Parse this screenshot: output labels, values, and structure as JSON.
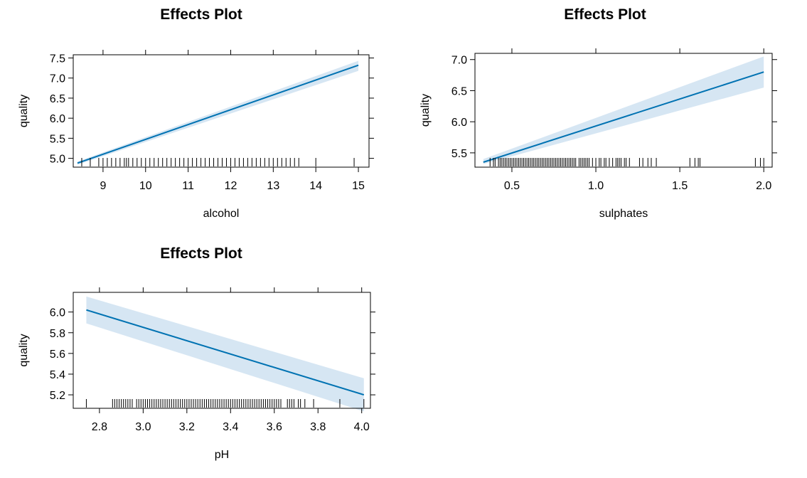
{
  "chart_data": [
    {
      "type": "line",
      "title": "Effects Plot",
      "xlabel": "alcohol",
      "ylabel": "quality",
      "xlim": [
        8.3,
        15.25
      ],
      "ylim": [
        4.78,
        7.58
      ],
      "xticks": [
        9,
        10,
        11,
        12,
        13,
        14,
        15
      ],
      "xtick_labels": [
        "9",
        "10",
        "11",
        "12",
        "13",
        "14",
        "15"
      ],
      "yticks": [
        5.0,
        5.5,
        6.0,
        6.5,
        7.0,
        7.5
      ],
      "ytick_labels": [
        "5.0",
        "5.5",
        "6.0",
        "6.5",
        "7.0",
        "7.5"
      ],
      "series": [
        {
          "x": [
            8.4,
            15.0
          ],
          "y": [
            4.88,
            7.32
          ],
          "lower": [
            4.84,
            7.18
          ],
          "upper": [
            4.92,
            7.43
          ]
        }
      ],
      "rug": [
        8.5,
        8.7,
        8.9,
        9.0,
        9.1,
        9.2,
        9.3,
        9.4,
        9.5,
        9.55,
        9.6,
        9.7,
        9.8,
        9.9,
        10.0,
        10.1,
        10.2,
        10.3,
        10.4,
        10.5,
        10.6,
        10.7,
        10.8,
        10.9,
        11.0,
        11.1,
        11.2,
        11.3,
        11.4,
        11.5,
        11.6,
        11.7,
        11.8,
        11.9,
        12.0,
        12.1,
        12.2,
        12.3,
        12.4,
        12.5,
        12.6,
        12.7,
        12.8,
        12.9,
        13.0,
        13.1,
        13.2,
        13.3,
        13.4,
        13.5,
        13.6,
        14.0,
        14.9
      ],
      "grid": false,
      "colors": {
        "line": "#0072b2",
        "band": "#d6e6f3"
      }
    },
    {
      "type": "line",
      "title": "Effects Plot",
      "xlabel": "sulphates",
      "ylabel": "quality",
      "xlim": [
        0.28,
        2.05
      ],
      "ylim": [
        5.27,
        7.1
      ],
      "xticks": [
        0.5,
        1.0,
        1.5,
        2.0
      ],
      "xtick_labels": [
        "0.5",
        "1.0",
        "1.5",
        "2.0"
      ],
      "yticks": [
        5.5,
        6.0,
        6.5,
        7.0
      ],
      "ytick_labels": [
        "5.5",
        "6.0",
        "6.5",
        "7.0"
      ],
      "series": [
        {
          "x": [
            0.33,
            2.0
          ],
          "y": [
            5.35,
            6.8
          ],
          "lower": [
            5.32,
            6.55
          ],
          "upper": [
            5.4,
            7.05
          ]
        }
      ],
      "rug": [
        0.37,
        0.39,
        0.4,
        0.42,
        0.43,
        0.44,
        0.45,
        0.46,
        0.47,
        0.48,
        0.49,
        0.5,
        0.51,
        0.52,
        0.53,
        0.54,
        0.55,
        0.56,
        0.57,
        0.58,
        0.59,
        0.6,
        0.61,
        0.62,
        0.63,
        0.64,
        0.65,
        0.66,
        0.67,
        0.68,
        0.69,
        0.7,
        0.71,
        0.72,
        0.73,
        0.74,
        0.75,
        0.76,
        0.77,
        0.78,
        0.79,
        0.8,
        0.81,
        0.82,
        0.83,
        0.84,
        0.85,
        0.86,
        0.87,
        0.88,
        0.9,
        0.91,
        0.92,
        0.93,
        0.94,
        0.95,
        0.96,
        0.98,
        1.0,
        1.02,
        1.03,
        1.05,
        1.06,
        1.08,
        1.1,
        1.12,
        1.13,
        1.14,
        1.15,
        1.17,
        1.18,
        1.2,
        1.26,
        1.28,
        1.31,
        1.33,
        1.36,
        1.56,
        1.59,
        1.61,
        1.62,
        1.95,
        1.98,
        2.0
      ],
      "grid": false,
      "colors": {
        "line": "#0072b2",
        "band": "#d6e6f3"
      }
    },
    {
      "type": "line",
      "title": "Effects Plot",
      "xlabel": "pH",
      "ylabel": "quality",
      "xlim": [
        2.68,
        4.04
      ],
      "ylim": [
        5.07,
        6.19
      ],
      "xticks": [
        2.8,
        3.0,
        3.2,
        3.4,
        3.6,
        3.8,
        4.0
      ],
      "xtick_labels": [
        "2.8",
        "3.0",
        "3.2",
        "3.4",
        "3.6",
        "3.8",
        "4.0"
      ],
      "yticks": [
        5.2,
        5.4,
        5.6,
        5.8,
        6.0
      ],
      "ytick_labels": [
        "5.2",
        "5.4",
        "5.6",
        "5.8",
        "6.0"
      ],
      "series": [
        {
          "x": [
            2.74,
            4.01
          ],
          "y": [
            6.02,
            5.2
          ],
          "lower": [
            5.89,
            5.04
          ],
          "upper": [
            6.15,
            5.36
          ]
        }
      ],
      "rug": [
        2.74,
        2.86,
        2.87,
        2.88,
        2.89,
        2.9,
        2.91,
        2.92,
        2.93,
        2.94,
        2.95,
        2.97,
        2.98,
        2.99,
        3.0,
        3.01,
        3.02,
        3.03,
        3.04,
        3.05,
        3.06,
        3.07,
        3.08,
        3.09,
        3.1,
        3.11,
        3.12,
        3.13,
        3.14,
        3.15,
        3.16,
        3.17,
        3.18,
        3.19,
        3.2,
        3.21,
        3.22,
        3.23,
        3.24,
        3.25,
        3.26,
        3.27,
        3.28,
        3.29,
        3.3,
        3.31,
        3.32,
        3.33,
        3.34,
        3.35,
        3.36,
        3.37,
        3.38,
        3.39,
        3.4,
        3.41,
        3.42,
        3.43,
        3.44,
        3.45,
        3.46,
        3.47,
        3.48,
        3.49,
        3.5,
        3.51,
        3.52,
        3.53,
        3.54,
        3.55,
        3.56,
        3.57,
        3.58,
        3.59,
        3.6,
        3.61,
        3.62,
        3.63,
        3.66,
        3.67,
        3.68,
        3.69,
        3.71,
        3.72,
        3.74,
        3.78,
        3.9,
        4.01
      ],
      "grid": false,
      "colors": {
        "line": "#0072b2",
        "band": "#d6e6f3"
      }
    }
  ]
}
